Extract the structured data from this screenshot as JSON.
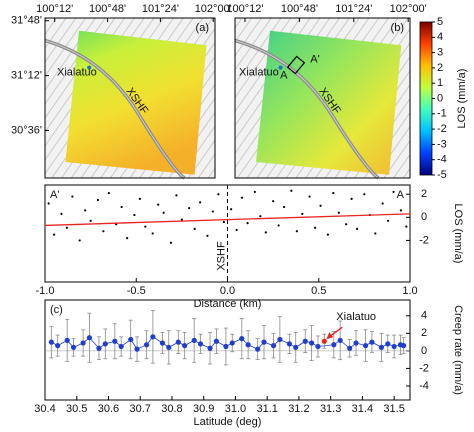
{
  "chart_data": [
    {
      "type": "map",
      "title": "(a)",
      "labels": [
        "Xialatuo",
        "XSHF"
      ],
      "xlim": [
        100.09,
        102.02
      ],
      "xticks": [
        {
          "value": 100.2,
          "label": "100°12'"
        },
        {
          "value": 100.8,
          "label": "100°48'"
        },
        {
          "value": 101.4,
          "label": "101°24'"
        },
        {
          "value": 102.0,
          "label": "102°00'"
        }
      ],
      "ylim": [
        30.08,
        31.83
      ],
      "yticks": [
        {
          "value": 31.8,
          "label": "31°48'"
        },
        {
          "value": 31.2,
          "label": "31°12'"
        },
        {
          "value": 30.6,
          "label": "30°36'"
        }
      ]
    },
    {
      "type": "map",
      "title": "(b)",
      "labels": [
        "Xialatuo",
        "XSHF",
        "A",
        "A'"
      ],
      "xlim": [
        100.09,
        102.02
      ],
      "xticks": [
        {
          "value": 100.2,
          "label": "100°12'"
        },
        {
          "value": 100.8,
          "label": "100°48'"
        },
        {
          "value": 101.4,
          "label": "101°24'"
        },
        {
          "value": 102.0,
          "label": "102°00'"
        }
      ],
      "ylim": [
        30.08,
        31.83
      ]
    },
    {
      "type": "colorbar",
      "y_label": "LOS (mm/a)",
      "ylim": [
        -5,
        5
      ],
      "yticks": [
        5,
        4,
        3,
        2,
        1,
        0,
        -1,
        -2,
        -3,
        -4,
        -5
      ],
      "colors": [
        "#00007f",
        "#0040ff",
        "#00c0ff",
        "#40ffbf",
        "#bfff40",
        "#ffc000",
        "#ff4000",
        "#7f0000"
      ]
    },
    {
      "type": "scatter",
      "x_label": "Distance (km)",
      "y_label": "LOS (mm/a)",
      "labels": [
        "A'",
        "A",
        "XSHF"
      ],
      "xlim": [
        -1,
        1
      ],
      "xticks": [
        {
          "value": -1,
          "label": "-1.0"
        },
        {
          "value": -0.5,
          "label": "-0.5"
        },
        {
          "value": 0,
          "label": "0.0"
        },
        0.5,
        {
          "value": 1,
          "label": "1.0"
        }
      ],
      "ylim": [
        -5.6,
        2.8
      ],
      "yticks": [
        2,
        0,
        -2
      ],
      "color": "#000000",
      "x": [
        -0.98,
        -0.95,
        -0.91,
        -0.88,
        -0.85,
        -0.81,
        -0.78,
        -0.75,
        -0.71,
        -0.68,
        -0.65,
        -0.61,
        -0.58,
        -0.55,
        -0.51,
        -0.48,
        -0.45,
        -0.41,
        -0.38,
        -0.35,
        -0.31,
        -0.28,
        -0.25,
        -0.21,
        -0.18,
        -0.15,
        -0.11,
        -0.08,
        -0.05,
        -0.02,
        0.02,
        0.05,
        0.08,
        0.11,
        0.15,
        0.18,
        0.21,
        0.25,
        0.28,
        0.31,
        0.35,
        0.38,
        0.41,
        0.45,
        0.48,
        0.51,
        0.55,
        0.58,
        0.61,
        0.65,
        0.68,
        0.71,
        0.75,
        0.78,
        0.81,
        0.85,
        0.88,
        0.91,
        0.95,
        0.98
      ],
      "values": [
        1.2,
        -1.5,
        0.3,
        -0.9,
        1.8,
        -2.0,
        0.6,
        -0.3,
        1.5,
        -1.2,
        2.1,
        -0.6,
        0.9,
        -1.8,
        0.2,
        1.6,
        -0.8,
        -1.4,
        1.1,
        0.4,
        -2.2,
        1.9,
        -0.2,
        0.8,
        -1.0,
        1.3,
        -1.6,
        0.5,
        2.0,
        -0.4,
        0.7,
        -1.1,
        1.7,
        -0.5,
        2.2,
        0.1,
        -1.3,
        1.4,
        -0.7,
        0.9,
        2.3,
        -1.2,
        0.3,
        1.8,
        -0.9,
        1.0,
        -1.5,
        2.1,
        0.4,
        -0.6,
        1.6,
        -1.0,
        2.0,
        0.2,
        -1.4,
        1.2,
        -0.3,
        2.2,
        0.6,
        -0.8
      ],
      "trend": {
        "x": [
          -1,
          1
        ],
        "values": [
          -0.7,
          0.3
        ],
        "color": "#e8261f"
      }
    },
    {
      "type": "errorbar",
      "title": "(c)",
      "x_label": "Latitude (deg)",
      "y_label": "Creep rate (mm/a)",
      "annotation": "Xialatuo",
      "xlim": [
        30.4,
        31.55
      ],
      "xticks": [
        30.4,
        30.5,
        30.6,
        30.7,
        30.8,
        30.9,
        {
          "value": 31,
          "label": "31.0"
        },
        31.1,
        31.2,
        31.3,
        31.4,
        31.5
      ],
      "ylim": [
        -5.6,
        5.8
      ],
      "yticks": [
        4,
        2,
        0,
        -2,
        -4
      ],
      "color": "#1f3fcf",
      "x": [
        30.42,
        30.44,
        30.47,
        30.49,
        30.52,
        30.54,
        30.57,
        30.59,
        30.62,
        30.64,
        30.67,
        30.69,
        30.72,
        30.74,
        30.77,
        30.79,
        30.82,
        30.84,
        30.87,
        30.89,
        30.92,
        30.94,
        30.97,
        30.99,
        31.02,
        31.04,
        31.07,
        31.09,
        31.12,
        31.14,
        31.17,
        31.19,
        31.22,
        31.24,
        31.26,
        31.31,
        31.33,
        31.36,
        31.38,
        31.41,
        31.43,
        31.46,
        31.48,
        31.5,
        31.52,
        31.53
      ],
      "values": [
        1.0,
        0.6,
        1.2,
        0.4,
        0.9,
        1.5,
        0.3,
        0.8,
        1.1,
        0.5,
        1.3,
        0.2,
        0.7,
        1.6,
        0.9,
        0.4,
        1.0,
        0.6,
        1.2,
        0.8,
        0.3,
        1.1,
        0.5,
        0.9,
        1.4,
        0.7,
        0.2,
        1.0,
        0.6,
        1.3,
        0.8,
        0.4,
        1.1,
        0.9,
        0.5,
        0.7,
        1.2,
        0.3,
        0.9,
        0.6,
        1.0,
        0.4,
        0.8,
        0.5,
        0.7,
        0.6
      ],
      "errors": [
        1.8,
        1.2,
        2.4,
        1.0,
        1.5,
        2.8,
        1.3,
        1.7,
        2.0,
        1.1,
        2.2,
        1.4,
        1.6,
        3.0,
        1.2,
        1.9,
        1.3,
        1.5,
        2.5,
        1.1,
        1.8,
        1.4,
        2.1,
        1.0,
        2.3,
        1.6,
        1.2,
        1.9,
        1.4,
        2.6,
        1.1,
        1.7,
        1.3,
        2.0,
        1.2,
        1.5,
        2.2,
        1.0,
        1.4,
        1.8,
        1.2,
        1.6,
        1.0,
        1.3,
        1.1,
        0.9
      ],
      "highlight": {
        "x": [
          31.28
        ],
        "values": [
          1.1
        ],
        "errors": [
          0.8
        ],
        "color": "#e8261f"
      }
    }
  ]
}
